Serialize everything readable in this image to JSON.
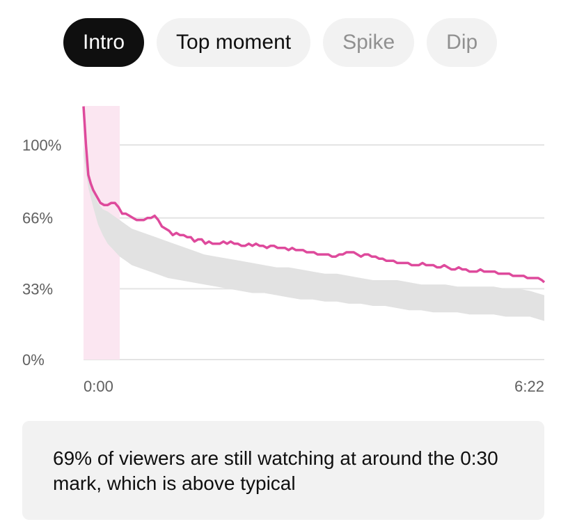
{
  "chips": [
    {
      "label": "Intro",
      "state": "active"
    },
    {
      "label": "Top moment",
      "state": "enabled"
    },
    {
      "label": "Spike",
      "state": "disabled"
    },
    {
      "label": "Dip",
      "state": "disabled"
    }
  ],
  "callout": {
    "text": "69% of viewers are still watching at around the 0:30 mark, which is above typical"
  },
  "chart_data": {
    "type": "line",
    "title": "",
    "xlabel": "",
    "ylabel": "",
    "x_unit": "seconds",
    "x_range": [
      0,
      382
    ],
    "ylim": [
      0,
      100
    ],
    "y_ticks": [
      {
        "value": 0,
        "label": "0%"
      },
      {
        "value": 33,
        "label": "33%"
      },
      {
        "value": 66,
        "label": "66%"
      },
      {
        "value": 100,
        "label": "100%"
      }
    ],
    "x_ticks": [
      {
        "value": 0,
        "label": "0:00"
      },
      {
        "value": 382,
        "label": "6:22"
      }
    ],
    "grid": true,
    "highlight": {
      "name": "Intro",
      "x_start": 0,
      "x_end": 30,
      "color": "#fbe6f1"
    },
    "colors": {
      "retention": "#de4a9c",
      "typical_band": "#e2e2e2",
      "grid": "#e4e4e4"
    },
    "series": [
      {
        "role": "retention",
        "x": [
          0,
          2,
          4,
          6,
          8,
          10,
          12,
          14,
          17,
          20,
          23,
          26,
          29,
          32,
          35,
          38,
          41,
          44,
          47,
          50,
          53,
          56,
          59,
          62,
          65,
          68,
          71,
          74,
          77,
          80,
          83,
          86,
          89,
          92,
          95,
          98,
          101,
          104,
          107,
          110,
          113,
          116,
          119,
          122,
          125,
          128,
          131,
          134,
          137,
          140,
          143,
          146,
          149,
          152,
          155,
          158,
          161,
          164,
          167,
          170,
          173,
          176,
          179,
          182,
          185,
          188,
          191,
          194,
          197,
          200,
          203,
          206,
          209,
          212,
          215,
          218,
          221,
          224,
          227,
          230,
          233,
          236,
          239,
          242,
          245,
          248,
          251,
          254,
          257,
          260,
          263,
          266,
          269,
          272,
          275,
          278,
          281,
          284,
          287,
          290,
          293,
          296,
          299,
          302,
          305,
          308,
          311,
          314,
          317,
          320,
          323,
          326,
          329,
          332,
          335,
          338,
          341,
          344,
          347,
          350,
          353,
          356,
          359,
          362,
          365,
          368,
          371,
          374,
          377,
          380,
          382
        ],
        "values": [
          118,
          100,
          86,
          82,
          79,
          77,
          75,
          73,
          72,
          72,
          73,
          73,
          71,
          68,
          68,
          67,
          66,
          65,
          65,
          65,
          66,
          66,
          67,
          65,
          62,
          61,
          60,
          58,
          59,
          58,
          58,
          57,
          57,
          55,
          56,
          56,
          54,
          55,
          54,
          54,
          54,
          55,
          54,
          55,
          54,
          54,
          53,
          53,
          54,
          53,
          54,
          53,
          53,
          52,
          53,
          53,
          52,
          52,
          52,
          51,
          52,
          51,
          51,
          51,
          50,
          50,
          50,
          49,
          49,
          49,
          49,
          48,
          48,
          49,
          49,
          50,
          50,
          50,
          49,
          48,
          49,
          49,
          48,
          48,
          47,
          47,
          46,
          46,
          46,
          45,
          45,
          45,
          45,
          44,
          44,
          44,
          45,
          44,
          44,
          44,
          43,
          43,
          44,
          43,
          42,
          42,
          43,
          42,
          42,
          41,
          41,
          41,
          42,
          41,
          41,
          41,
          41,
          40,
          40,
          40,
          40,
          39,
          39,
          39,
          39,
          38,
          38,
          38,
          38,
          37,
          36
        ]
      },
      {
        "role": "typical_band",
        "x": [
          0,
          4,
          8,
          12,
          16,
          20,
          25,
          30,
          35,
          40,
          50,
          60,
          70,
          80,
          90,
          100,
          110,
          120,
          130,
          140,
          150,
          160,
          170,
          180,
          190,
          200,
          210,
          220,
          230,
          240,
          250,
          260,
          270,
          280,
          290,
          300,
          310,
          320,
          330,
          340,
          350,
          360,
          370,
          382
        ],
        "low": [
          95,
          80,
          71,
          63,
          58,
          54,
          51,
          48,
          46,
          44,
          42,
          40,
          38,
          37,
          36,
          35,
          34,
          33,
          32,
          31,
          31,
          30,
          29,
          28,
          28,
          27,
          27,
          26,
          26,
          25,
          25,
          24,
          23,
          23,
          22,
          22,
          22,
          21,
          21,
          21,
          20,
          20,
          20,
          18
        ],
        "high": [
          100,
          86,
          78,
          73,
          70,
          69,
          67,
          65,
          63,
          61,
          59,
          57,
          55,
          53,
          51,
          49,
          48,
          47,
          46,
          45,
          44,
          43,
          43,
          42,
          41,
          40,
          40,
          39,
          38,
          37,
          37,
          37,
          36,
          35,
          35,
          35,
          34,
          34,
          34,
          34,
          33,
          33,
          32,
          30
        ]
      }
    ]
  }
}
